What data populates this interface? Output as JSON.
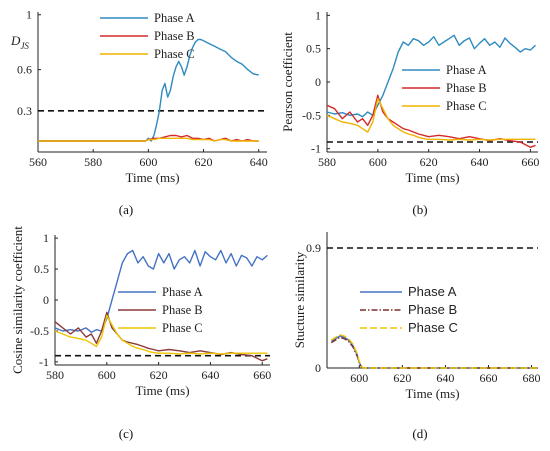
{
  "chart_data": [
    {
      "id": "a",
      "type": "line",
      "panel_label": "(a)",
      "ylabel": "D",
      "ylabel_sub": "JS",
      "xlabel": "Time (ms)",
      "xticks": [
        560,
        580,
        600,
        620,
        640
      ],
      "yticks": [
        0.3,
        0.6,
        1.0
      ],
      "xlim": [
        560,
        643
      ],
      "ylim": [
        0,
        1.02
      ],
      "threshold": 0.3,
      "legend": "top-right",
      "series": [
        {
          "name": "Phase A",
          "color": "#2e8bc0",
          "x": [
            560,
            570,
            580,
            590,
            599,
            600,
            601,
            602,
            603,
            604,
            605,
            606,
            607,
            608,
            609,
            610,
            611,
            612,
            613,
            614,
            615,
            616,
            617,
            618,
            619,
            620,
            622,
            624,
            626,
            628,
            630,
            632,
            634,
            636,
            638,
            640
          ],
          "y": [
            0.08,
            0.08,
            0.08,
            0.08,
            0.08,
            0.1,
            0.08,
            0.12,
            0.2,
            0.3,
            0.45,
            0.5,
            0.4,
            0.45,
            0.55,
            0.62,
            0.66,
            0.62,
            0.56,
            0.62,
            0.7,
            0.76,
            0.8,
            0.82,
            0.82,
            0.81,
            0.79,
            0.77,
            0.75,
            0.73,
            0.69,
            0.66,
            0.64,
            0.6,
            0.57,
            0.56
          ]
        },
        {
          "name": "Phase B",
          "color": "#d42a2a",
          "x": [
            560,
            570,
            580,
            590,
            599,
            600,
            602,
            604,
            606,
            608,
            610,
            612,
            614,
            616,
            618,
            620,
            622,
            624,
            626,
            628,
            630,
            632,
            634,
            636,
            638,
            640
          ],
          "y": [
            0.08,
            0.08,
            0.08,
            0.08,
            0.08,
            0.09,
            0.1,
            0.1,
            0.11,
            0.12,
            0.12,
            0.11,
            0.12,
            0.1,
            0.1,
            0.09,
            0.1,
            0.08,
            0.09,
            0.1,
            0.08,
            0.09,
            0.08,
            0.09,
            0.08,
            0.08
          ]
        },
        {
          "name": "Phase C",
          "color": "#f0b400",
          "x": [
            560,
            570,
            580,
            590,
            599,
            600,
            602,
            604,
            606,
            608,
            610,
            612,
            614,
            616,
            618,
            620,
            622,
            624,
            626,
            628,
            630,
            632,
            634,
            636,
            638,
            640
          ],
          "y": [
            0.08,
            0.08,
            0.08,
            0.08,
            0.08,
            0.09,
            0.09,
            0.1,
            0.1,
            0.1,
            0.1,
            0.1,
            0.1,
            0.09,
            0.09,
            0.09,
            0.09,
            0.08,
            0.09,
            0.09,
            0.08,
            0.08,
            0.08,
            0.08,
            0.08,
            0.08
          ]
        }
      ]
    },
    {
      "id": "b",
      "type": "line",
      "panel_label": "(b)",
      "ylabel": "Pearson coefficient",
      "xlabel": "Time (ms)",
      "xticks": [
        580,
        600,
        620,
        640,
        660
      ],
      "yticks": [
        -1,
        -0.5,
        0,
        0.5,
        1
      ],
      "xlim": [
        580,
        663
      ],
      "ylim": [
        -1.05,
        1.05
      ],
      "threshold": -0.9,
      "legend": "right",
      "series": [
        {
          "name": "Phase A",
          "color": "#2e8bc0",
          "x": [
            580,
            583,
            586,
            589,
            592,
            594,
            596,
            598,
            600,
            602,
            604,
            606,
            608,
            610,
            612,
            614,
            616,
            618,
            620,
            622,
            624,
            626,
            628,
            630,
            632,
            634,
            636,
            638,
            640,
            642,
            644,
            646,
            648,
            650,
            652,
            654,
            656,
            658,
            660,
            662
          ],
          "y": [
            -0.45,
            -0.48,
            -0.46,
            -0.5,
            -0.48,
            -0.52,
            -0.45,
            -0.5,
            -0.35,
            -0.2,
            0.0,
            0.2,
            0.45,
            0.6,
            0.55,
            0.65,
            0.62,
            0.55,
            0.6,
            0.68,
            0.55,
            0.6,
            0.65,
            0.7,
            0.55,
            0.62,
            0.66,
            0.5,
            0.58,
            0.65,
            0.55,
            0.6,
            0.52,
            0.66,
            0.58,
            0.52,
            0.45,
            0.5,
            0.48,
            0.55
          ]
        },
        {
          "name": "Phase B",
          "color": "#d42a2a",
          "x": [
            580,
            583,
            586,
            589,
            592,
            594,
            596,
            598,
            600,
            602,
            604,
            606,
            608,
            610,
            612,
            614,
            616,
            618,
            620,
            624,
            628,
            632,
            636,
            640,
            644,
            648,
            652,
            656,
            660,
            662
          ],
          "y": [
            -0.35,
            -0.4,
            -0.55,
            -0.45,
            -0.6,
            -0.55,
            -0.65,
            -0.5,
            -0.2,
            -0.45,
            -0.55,
            -0.6,
            -0.65,
            -0.7,
            -0.72,
            -0.75,
            -0.78,
            -0.8,
            -0.82,
            -0.8,
            -0.82,
            -0.85,
            -0.82,
            -0.85,
            -0.88,
            -0.85,
            -0.88,
            -0.9,
            -0.98,
            -0.95
          ]
        },
        {
          "name": "Phase C",
          "color": "#f0b400",
          "x": [
            580,
            583,
            586,
            589,
            592,
            594,
            596,
            598,
            600,
            602,
            604,
            606,
            608,
            610,
            612,
            614,
            616,
            618,
            620,
            624,
            628,
            632,
            636,
            640,
            644,
            648,
            652,
            656,
            660,
            662
          ],
          "y": [
            -0.5,
            -0.55,
            -0.6,
            -0.62,
            -0.65,
            -0.7,
            -0.75,
            -0.6,
            -0.25,
            -0.4,
            -0.55,
            -0.65,
            -0.7,
            -0.75,
            -0.78,
            -0.8,
            -0.83,
            -0.85,
            -0.86,
            -0.86,
            -0.87,
            -0.86,
            -0.87,
            -0.86,
            -0.87,
            -0.86,
            -0.86,
            -0.86,
            -0.86,
            -0.86
          ]
        }
      ]
    },
    {
      "id": "c",
      "type": "line",
      "panel_label": "(c)",
      "ylabel": "Cosine similarity coefficient",
      "xlabel": "Time (ms)",
      "xticks": [
        580,
        600,
        620,
        640,
        660
      ],
      "yticks": [
        -1,
        -0.5,
        0,
        0.5,
        1
      ],
      "xlim": [
        580,
        663
      ],
      "ylim": [
        -1.05,
        1.05
      ],
      "threshold": -0.9,
      "legend": "right",
      "series": [
        {
          "name": "Phase A",
          "color": "#4472c4",
          "x": [
            580,
            583,
            586,
            589,
            592,
            594,
            596,
            598,
            600,
            602,
            604,
            606,
            608,
            610,
            612,
            614,
            616,
            618,
            620,
            622,
            624,
            626,
            628,
            630,
            632,
            634,
            636,
            638,
            640,
            642,
            644,
            646,
            648,
            650,
            652,
            654,
            656,
            658,
            660,
            662
          ],
          "y": [
            -0.45,
            -0.5,
            -0.48,
            -0.5,
            -0.45,
            -0.52,
            -0.48,
            -0.5,
            -0.3,
            0.0,
            0.3,
            0.6,
            0.75,
            0.8,
            0.6,
            0.7,
            0.55,
            0.5,
            0.75,
            0.6,
            0.75,
            0.5,
            0.65,
            0.7,
            0.6,
            0.8,
            0.55,
            0.78,
            0.7,
            0.65,
            0.8,
            0.6,
            0.75,
            0.55,
            0.72,
            0.68,
            0.55,
            0.7,
            0.65,
            0.72
          ]
        },
        {
          "name": "Phase B",
          "color": "#8b3a3a",
          "x": [
            580,
            583,
            586,
            589,
            592,
            594,
            596,
            598,
            600,
            602,
            604,
            606,
            608,
            610,
            612,
            614,
            616,
            618,
            620,
            624,
            628,
            632,
            636,
            640,
            644,
            648,
            652,
            656,
            660,
            662
          ],
          "y": [
            -0.35,
            -0.45,
            -0.55,
            -0.45,
            -0.6,
            -0.55,
            -0.7,
            -0.5,
            -0.2,
            -0.45,
            -0.55,
            -0.65,
            -0.68,
            -0.7,
            -0.72,
            -0.75,
            -0.78,
            -0.8,
            -0.82,
            -0.8,
            -0.82,
            -0.85,
            -0.82,
            -0.85,
            -0.88,
            -0.85,
            -0.88,
            -0.9,
            -0.98,
            -0.95
          ]
        },
        {
          "name": "Phase C",
          "color": "#f0c400",
          "x": [
            580,
            583,
            586,
            589,
            592,
            594,
            596,
            598,
            600,
            602,
            604,
            606,
            608,
            610,
            612,
            614,
            616,
            618,
            620,
            624,
            628,
            632,
            636,
            640,
            644,
            648,
            652,
            656,
            660,
            662
          ],
          "y": [
            -0.5,
            -0.55,
            -0.6,
            -0.62,
            -0.65,
            -0.7,
            -0.75,
            -0.6,
            -0.25,
            -0.4,
            -0.55,
            -0.65,
            -0.7,
            -0.75,
            -0.78,
            -0.8,
            -0.83,
            -0.85,
            -0.86,
            -0.86,
            -0.87,
            -0.86,
            -0.87,
            -0.86,
            -0.87,
            -0.86,
            -0.86,
            -0.86,
            -0.86,
            -0.86
          ]
        }
      ]
    },
    {
      "id": "d",
      "type": "line",
      "panel_label": "(d)",
      "ylabel": "Stucture similarity",
      "xlabel": "Time (ms)",
      "xticks": [
        600,
        620,
        640,
        660,
        680
      ],
      "yticks": [
        0,
        0.9
      ],
      "xlim": [
        585,
        683
      ],
      "ylim": [
        0,
        1.02
      ],
      "threshold": 0.9,
      "legend": "center-right",
      "series": [
        {
          "name": "Phase A",
          "color": "#4472c4",
          "dash": "",
          "x": [
            587,
            589,
            591,
            593,
            595,
            597,
            599,
            600,
            601,
            602,
            610,
            620,
            640,
            660,
            683
          ],
          "y": [
            0.2,
            0.22,
            0.24,
            0.23,
            0.21,
            0.17,
            0.1,
            0.04,
            0.01,
            0.0,
            0.0,
            0.0,
            0.0,
            0.0,
            0.0
          ]
        },
        {
          "name": "Phase B",
          "color": "#7a2f2f",
          "dash": "6,2,1.5,2",
          "x": [
            587,
            589,
            591,
            593,
            595,
            597,
            599,
            600,
            601,
            602,
            610,
            620,
            640,
            660,
            683
          ],
          "y": [
            0.19,
            0.21,
            0.23,
            0.22,
            0.2,
            0.16,
            0.09,
            0.04,
            0.01,
            0.0,
            0.0,
            0.0,
            0.0,
            0.0,
            0.0
          ]
        },
        {
          "name": "Phase C",
          "color": "#f0c400",
          "dash": "7,3",
          "x": [
            587,
            589,
            591,
            593,
            595,
            597,
            599,
            600,
            601,
            602,
            610,
            620,
            640,
            660,
            683
          ],
          "y": [
            0.21,
            0.23,
            0.25,
            0.24,
            0.22,
            0.18,
            0.11,
            0.05,
            0.01,
            0.0,
            0.0,
            0.0,
            0.0,
            0.0,
            0.0
          ]
        }
      ]
    }
  ]
}
